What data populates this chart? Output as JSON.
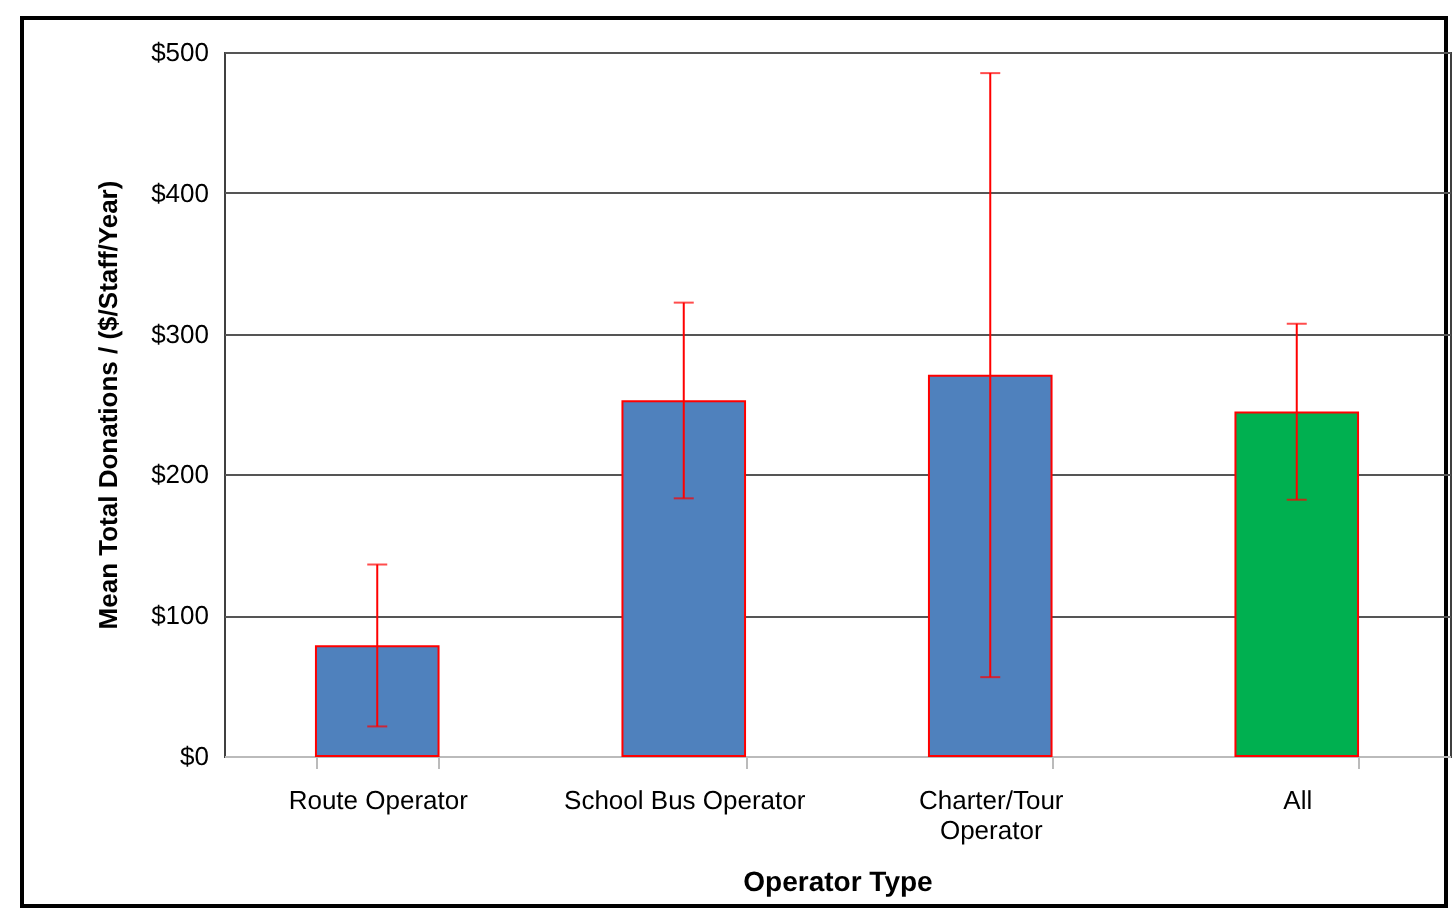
{
  "chart_data": {
    "type": "bar",
    "xlabel": "Operator Type",
    "ylabel": "Mean Total Donations / ($/Staff/Year)",
    "categories": [
      "Route Operator",
      "School Bus Operator",
      "Charter/Tour Operator",
      "All"
    ],
    "values": [
      78,
      252,
      270,
      244
    ],
    "colors": [
      "#4f81bd",
      "#4f81bd",
      "#4f81bd",
      "#00b050"
    ],
    "errors": [
      [
        21,
        136
      ],
      [
        183,
        322
      ],
      [
        56,
        485
      ],
      [
        182,
        307
      ]
    ],
    "ylim": [
      0,
      500
    ],
    "yticks": [
      {
        "value": 0,
        "label": "$0"
      },
      {
        "value": 100,
        "label": "$100"
      },
      {
        "value": 200,
        "label": "$200"
      },
      {
        "value": 300,
        "label": "$300"
      },
      {
        "value": 400,
        "label": "$400"
      },
      {
        "value": 500,
        "label": "$500"
      }
    ],
    "grid": "y"
  }
}
